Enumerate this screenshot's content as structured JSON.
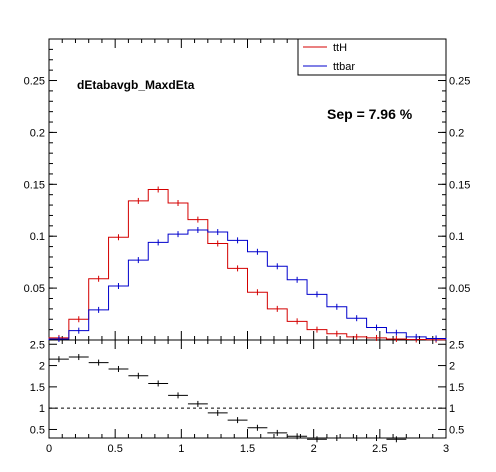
{
  "chart_data": [
    {
      "type": "histogram",
      "title": "dEtabavgb_MaxdEta",
      "annotation": "Sep = 7.96 %",
      "xlim": [
        0,
        3
      ],
      "ylim": [
        0,
        0.29
      ],
      "ticks_x": [
        0,
        0.5,
        1,
        1.5,
        2,
        2.5,
        3
      ],
      "tick_labels_x": [
        "0",
        "0.5",
        "1",
        "1.5",
        "2",
        "2.5",
        "3"
      ],
      "ticks_y": [
        0.05,
        0.1,
        0.15,
        0.2,
        0.25
      ],
      "tick_labels_y": [
        "0.05",
        "0.1",
        "0.15",
        "0.2",
        "0.25"
      ],
      "bin_edges": [
        0,
        0.15,
        0.3,
        0.45,
        0.6,
        0.75,
        0.9,
        1.05,
        1.2,
        1.35,
        1.5,
        1.65,
        1.8,
        1.95,
        2.1,
        2.25,
        2.4,
        2.55,
        2.7,
        2.85,
        3.0
      ],
      "legend_position": "top-right",
      "series": [
        {
          "name": "ttH",
          "color": "#d40000",
          "values": [
            0.002,
            0.02,
            0.059,
            0.099,
            0.134,
            0.145,
            0.132,
            0.116,
            0.093,
            0.069,
            0.046,
            0.03,
            0.018,
            0.01,
            0.006,
            0.003,
            0.002,
            0.001,
            0.0005,
            0.0003
          ]
        },
        {
          "name": "ttbar",
          "color": "#0000cc",
          "values": [
            0.001,
            0.009,
            0.029,
            0.052,
            0.077,
            0.094,
            0.102,
            0.106,
            0.104,
            0.096,
            0.085,
            0.071,
            0.058,
            0.044,
            0.032,
            0.021,
            0.012,
            0.007,
            0.003,
            0.0015
          ]
        }
      ]
    },
    {
      "type": "scatter",
      "title": "",
      "xlim": [
        0,
        3
      ],
      "ylim": [
        0.3,
        2.6
      ],
      "ticks_y": [
        0.5,
        1,
        1.5,
        2,
        2.5
      ],
      "tick_labels_y": [
        "0.5",
        "1",
        "1.5",
        "2",
        "2.5"
      ],
      "reference_line": 1,
      "x": [
        0.075,
        0.225,
        0.375,
        0.525,
        0.675,
        0.825,
        0.975,
        1.125,
        1.275,
        1.425,
        1.575,
        1.725,
        1.875,
        2.025,
        2.175,
        2.325,
        2.475,
        2.625
      ],
      "y": [
        2.15,
        2.2,
        2.07,
        1.92,
        1.76,
        1.58,
        1.3,
        1.1,
        0.89,
        0.72,
        0.54,
        0.42,
        0.34,
        0.27,
        0.3,
        0.3,
        0.3,
        0.27
      ]
    }
  ]
}
